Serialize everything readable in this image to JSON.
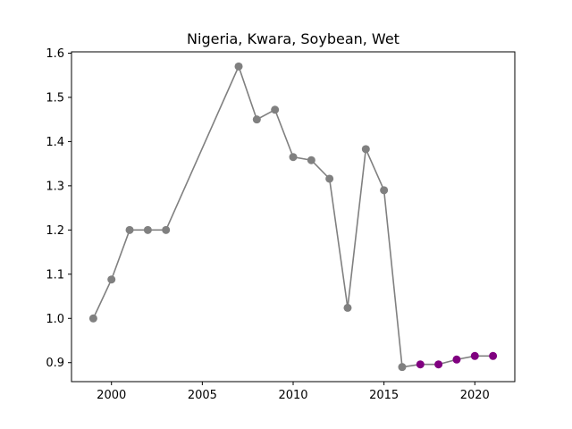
{
  "chart_data": {
    "type": "line",
    "title": "Nigeria, Kwara, Soybean, Wet",
    "xlabel": "",
    "ylabel": "",
    "xlim": [
      1997.8,
      2022.2
    ],
    "ylim": [
      0.857,
      1.603
    ],
    "xticks": [
      2000,
      2005,
      2010,
      2015,
      2020
    ],
    "yticks": [
      0.9,
      1.0,
      1.1,
      1.2,
      1.3,
      1.4,
      1.5,
      1.6
    ],
    "xtick_labels": [
      "2000",
      "2005",
      "2010",
      "2015",
      "2020"
    ],
    "ytick_labels": [
      "0.9",
      "1.0",
      "1.1",
      "1.2",
      "1.3",
      "1.4",
      "1.5",
      "1.6"
    ],
    "grid": false,
    "series": [
      {
        "color": "#808080",
        "x": [
          1999,
          2000,
          2001,
          2002,
          2003,
          2007,
          2008,
          2009,
          2010,
          2011,
          2012,
          2013,
          2014,
          2015,
          2016
        ],
        "y": [
          1.0,
          1.088,
          1.2,
          1.2,
          1.2,
          1.57,
          1.45,
          1.472,
          1.365,
          1.358,
          1.316,
          1.024,
          1.383,
          1.29,
          0.89
        ]
      },
      {
        "color": "#808080",
        "line_only": true,
        "x": [
          2016,
          2017,
          2018,
          2019,
          2020,
          2021
        ],
        "y": [
          0.89,
          0.896,
          0.896,
          0.907,
          0.915,
          0.915
        ]
      },
      {
        "color": "#800080",
        "markers_only": true,
        "x": [
          2017,
          2018,
          2019,
          2020,
          2021
        ],
        "y": [
          0.896,
          0.896,
          0.907,
          0.915,
          0.915
        ]
      }
    ]
  }
}
